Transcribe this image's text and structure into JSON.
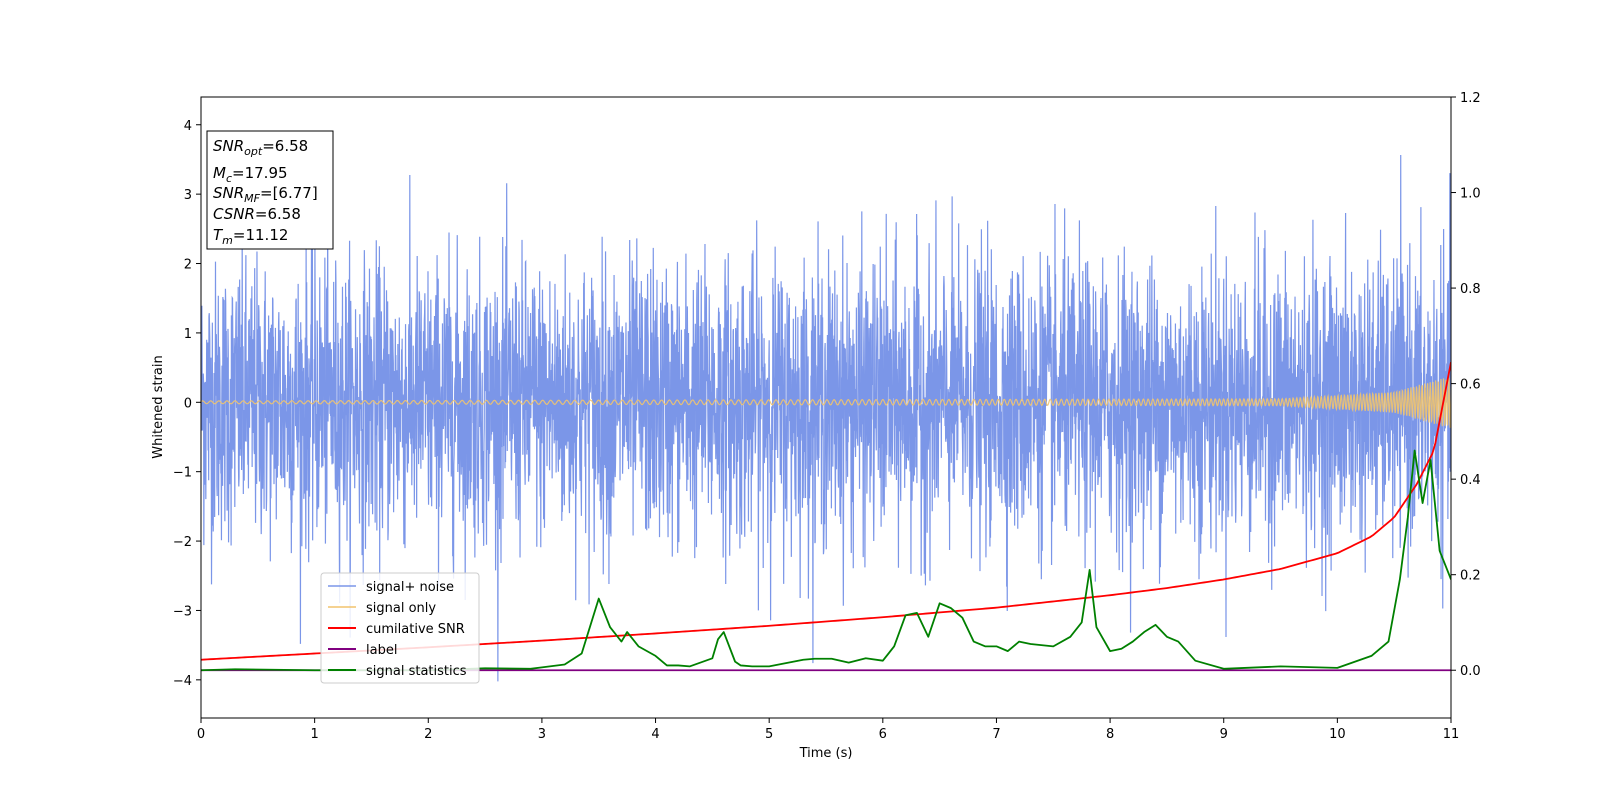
{
  "chart_data": {
    "type": "line",
    "title": "",
    "xlabel": "Time (s)",
    "ylabel": "Whitened strain",
    "xlim": [
      0,
      11
    ],
    "ylim_left": [
      -4.55,
      4.4
    ],
    "ylim_right": [
      -0.1,
      1.2
    ],
    "x_ticks": [
      "0",
      "1",
      "2",
      "3",
      "4",
      "5",
      "6",
      "7",
      "8",
      "9",
      "10",
      "11"
    ],
    "y_left_ticks": [
      "4",
      "3",
      "2",
      "1",
      "0",
      "−1",
      "−2",
      "−3",
      "−4"
    ],
    "y_right_ticks": [
      "1.2",
      "1.0",
      "0.8",
      "0.6",
      "0.4",
      "0.2",
      "0.0"
    ],
    "grid": false,
    "legend_position": "lower left",
    "annotation": [
      {
        "var": "SNR",
        "sub": "opt",
        "value": "=6.58"
      },
      {
        "var": "M",
        "sub": "c",
        "value": "=17.95"
      },
      {
        "var": "SNR",
        "sub": "MF",
        "value": "=[6.77]"
      },
      {
        "var": "CSNR",
        "sub": "",
        "value": "=6.58"
      },
      {
        "var": "T",
        "sub": "m",
        "value": "=11.12"
      }
    ],
    "series": [
      {
        "name": "signal+ noise",
        "axis": "left",
        "color": "#7b96e8",
        "kind": "noise",
        "description_stats": {
          "mean": 0.0,
          "std": 1.0,
          "range": [
            -4.15,
            4.0
          ]
        }
      },
      {
        "name": "signal only",
        "axis": "left",
        "color": "#f2c46d",
        "kind": "chirp",
        "amplitude_at": [
          [
            0,
            0.02
          ],
          [
            9.5,
            0.05
          ],
          [
            10.5,
            0.15
          ],
          [
            11,
            0.38
          ]
        ]
      },
      {
        "name": "cumilative SNR",
        "axis": "right",
        "color": "#ff0000",
        "x": [
          0,
          1,
          2,
          3,
          4,
          5,
          6,
          7,
          8,
          8.5,
          9,
          9.5,
          10,
          10.3,
          10.5,
          10.7,
          10.85,
          11
        ],
        "y": [
          0.022,
          0.035,
          0.048,
          0.062,
          0.077,
          0.093,
          0.111,
          0.131,
          0.157,
          0.172,
          0.19,
          0.212,
          0.245,
          0.28,
          0.32,
          0.39,
          0.46,
          0.645
        ]
      },
      {
        "name": "label",
        "axis": "right",
        "color": "#800080",
        "x": [
          0,
          11
        ],
        "y": [
          0.0,
          0.0
        ]
      },
      {
        "name": "signal statistics",
        "axis": "right",
        "color": "#008000",
        "x": [
          0,
          0.3,
          1.0,
          2.0,
          2.5,
          2.9,
          3.0,
          3.2,
          3.35,
          3.5,
          3.6,
          3.7,
          3.75,
          3.85,
          4.0,
          4.1,
          4.2,
          4.3,
          4.5,
          4.55,
          4.6,
          4.7,
          4.75,
          4.85,
          5.0,
          5.3,
          5.4,
          5.55,
          5.7,
          5.85,
          6.0,
          6.1,
          6.2,
          6.3,
          6.4,
          6.5,
          6.6,
          6.7,
          6.8,
          6.9,
          7.0,
          7.1,
          7.2,
          7.3,
          7.5,
          7.65,
          7.75,
          7.82,
          7.88,
          8.0,
          8.1,
          8.2,
          8.3,
          8.4,
          8.5,
          8.6,
          8.75,
          9.0,
          9.5,
          10.0,
          10.3,
          10.45,
          10.55,
          10.62,
          10.68,
          10.75,
          10.82,
          10.9,
          11.0
        ],
        "y": [
          0.0,
          0.002,
          0.0,
          0.0,
          0.004,
          0.003,
          0.006,
          0.012,
          0.035,
          0.15,
          0.09,
          0.06,
          0.08,
          0.05,
          0.03,
          0.01,
          0.01,
          0.008,
          0.025,
          0.065,
          0.08,
          0.018,
          0.01,
          0.008,
          0.008,
          0.022,
          0.024,
          0.024,
          0.016,
          0.025,
          0.02,
          0.05,
          0.115,
          0.12,
          0.07,
          0.14,
          0.13,
          0.11,
          0.06,
          0.05,
          0.05,
          0.04,
          0.06,
          0.055,
          0.05,
          0.07,
          0.1,
          0.21,
          0.09,
          0.04,
          0.045,
          0.06,
          0.08,
          0.095,
          0.07,
          0.06,
          0.02,
          0.003,
          0.008,
          0.005,
          0.03,
          0.06,
          0.19,
          0.32,
          0.46,
          0.35,
          0.44,
          0.25,
          0.19
        ]
      }
    ]
  }
}
